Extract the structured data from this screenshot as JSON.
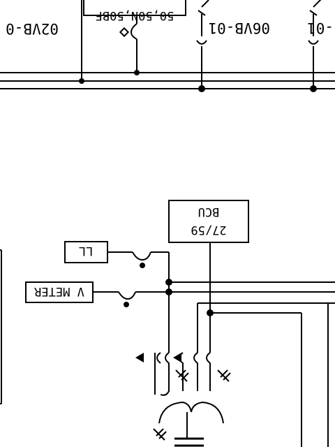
{
  "labels": {
    "bay_left": "02VB-0",
    "bay_breaker_label": "50,50N,50BF",
    "bay_mid": "06VB-01",
    "bay_right": "-01",
    "relay_top": "BCU",
    "relay_bottom": "27/59",
    "ll_box": "LL",
    "vmeter_box": "V METER"
  },
  "colors": {
    "line": "#000000",
    "background": "#ffffff"
  }
}
